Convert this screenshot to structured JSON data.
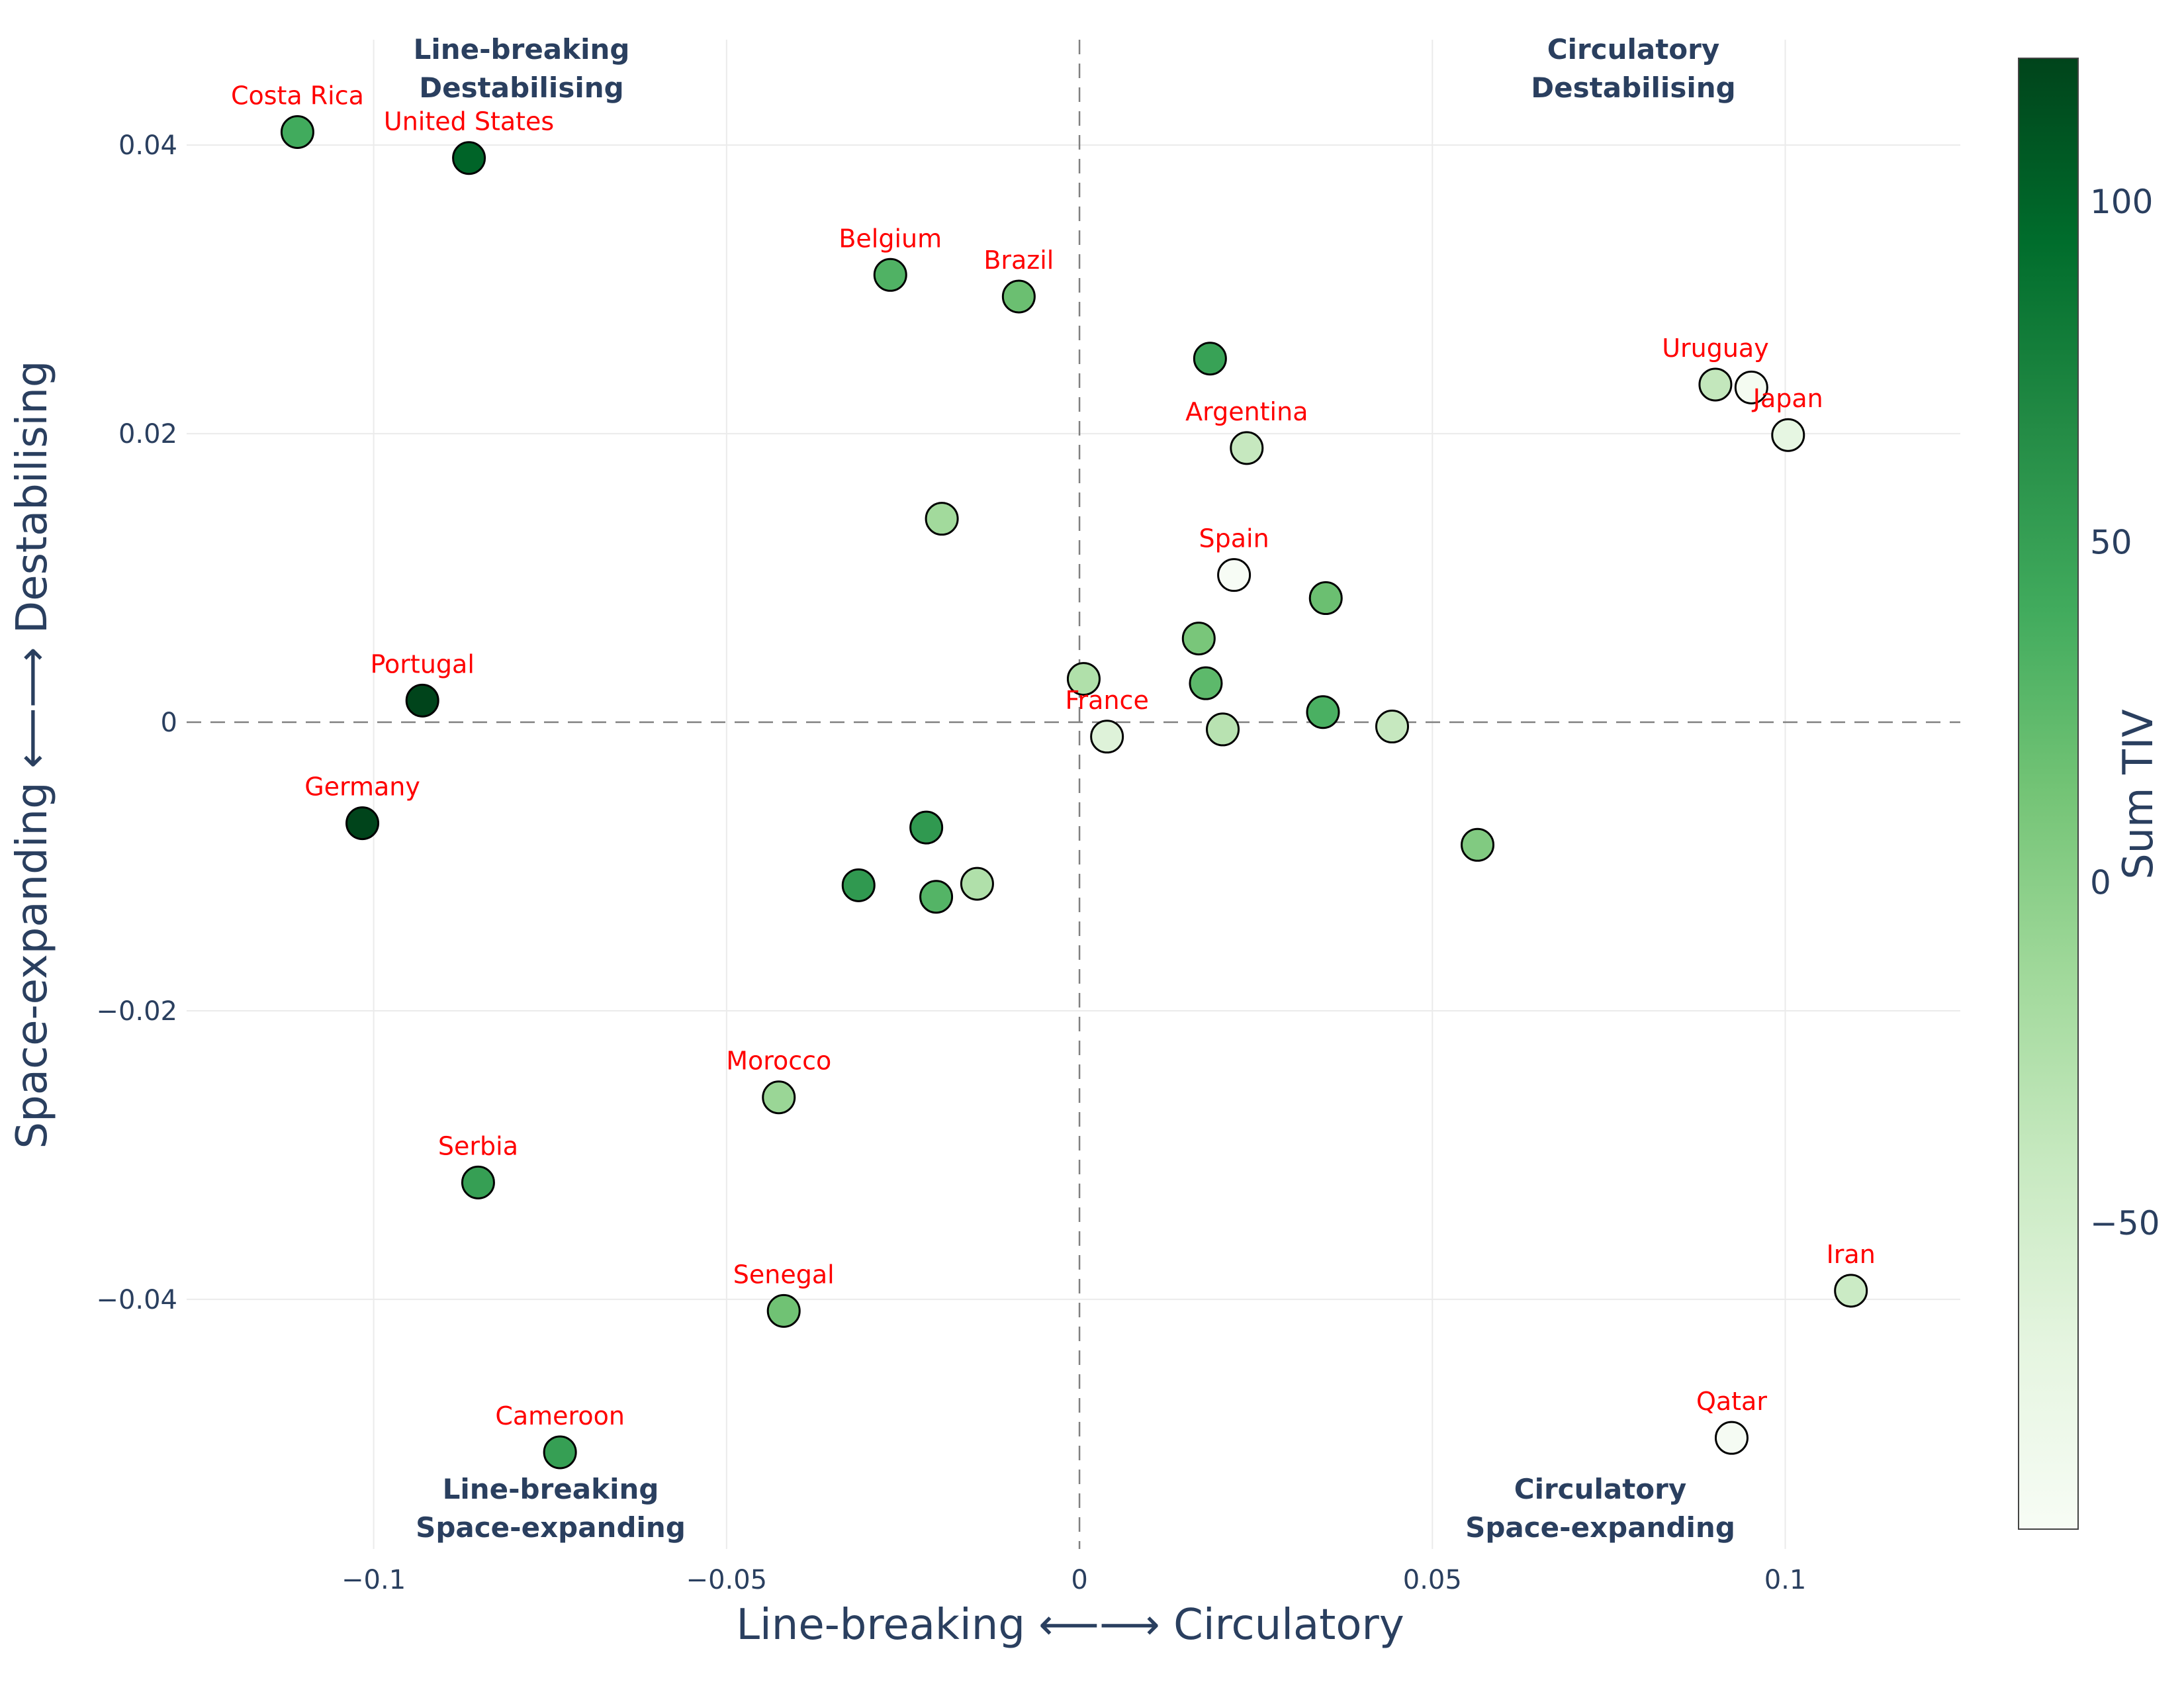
{
  "chart_data": {
    "type": "scatter",
    "title": "",
    "xlabel": "Line-breaking  ⟵⟶  Circulatory",
    "ylabel": "Space-expanding  ⟵⟶  Destabilising",
    "xlim": [
      -0.1265,
      0.1248
    ],
    "ylim": [
      -0.0573,
      0.0473
    ],
    "x_ticks": [
      -0.1,
      -0.05,
      0,
      0.05,
      0.1
    ],
    "x_tick_labels": [
      "−0.1",
      "−0.05",
      "0",
      "0.05",
      "0.1"
    ],
    "y_ticks": [
      -0.04,
      -0.02,
      0,
      0.02,
      0.04
    ],
    "y_tick_labels": [
      "−0.04",
      "−0.02",
      "0",
      "0.02",
      "0.04"
    ],
    "grid": true,
    "quadrant_labels": [
      {
        "line1": "Line-breaking",
        "line2": "Destabilising",
        "position": "top-left"
      },
      {
        "line1": "Circulatory",
        "line2": "Destabilising",
        "position": "top-right"
      },
      {
        "line1": "Line-breaking",
        "line2": "Space-expanding",
        "position": "bottom-left"
      },
      {
        "line1": "Circulatory",
        "line2": "Space-expanding",
        "position": "bottom-right"
      }
    ],
    "colorbar": {
      "title": "Sum TIV",
      "min": -95,
      "max": 121,
      "ticks": [
        -50,
        0,
        50,
        100
      ],
      "tick_labels": [
        "−50",
        "0",
        "50",
        "100"
      ],
      "colors": [
        "#f7fcf5",
        "#e5f5e0",
        "#c7e9c0",
        "#a1d99b",
        "#74c476",
        "#41ab5d",
        "#238b45",
        "#006d2c",
        "#00441b"
      ]
    },
    "label_color": "#ff0000",
    "points": [
      {
        "label": "Costa Rica",
        "x": -0.1108,
        "y": 0.0409,
        "tiv": 40
      },
      {
        "label": "United States",
        "x": -0.0865,
        "y": 0.0391,
        "tiv": 100
      },
      {
        "label": "Belgium",
        "x": -0.0268,
        "y": 0.031,
        "tiv": 32
      },
      {
        "label": "Brazil",
        "x": -0.0086,
        "y": 0.0295,
        "tiv": 18
      },
      {
        "label": "",
        "x": 0.0185,
        "y": 0.0252,
        "tiv": 48
      },
      {
        "label": "Uruguay",
        "x": 0.0901,
        "y": 0.0234,
        "tiv": -38
      },
      {
        "label": "",
        "x": 0.0952,
        "y": 0.0232,
        "tiv": -90
      },
      {
        "label": "Japan",
        "x": 0.1004,
        "y": 0.0199,
        "tiv": -70
      },
      {
        "label": "Argentina",
        "x": 0.0237,
        "y": 0.019,
        "tiv": -40
      },
      {
        "label": "",
        "x": -0.0195,
        "y": 0.0141,
        "tiv": -15
      },
      {
        "label": "Spain",
        "x": 0.0219,
        "y": 0.0102,
        "tiv": -95
      },
      {
        "label": "",
        "x": 0.0349,
        "y": 0.0086,
        "tiv": 18
      },
      {
        "label": "",
        "x": 0.0169,
        "y": 0.0058,
        "tiv": 10
      },
      {
        "label": "",
        "x": 0.0006,
        "y": 0.003,
        "tiv": -25
      },
      {
        "label": "",
        "x": 0.0179,
        "y": 0.0027,
        "tiv": 25
      },
      {
        "label": "Portugal",
        "x": -0.0931,
        "y": 0.0015,
        "tiv": 121
      },
      {
        "label": "",
        "x": 0.0345,
        "y": 0.0007,
        "tiv": 35
      },
      {
        "label": "France",
        "x": 0.0039,
        "y": -0.001,
        "tiv": -62
      },
      {
        "label": "",
        "x": 0.0203,
        "y": -0.0005,
        "tiv": -30
      },
      {
        "label": "",
        "x": 0.0443,
        "y": -0.0003,
        "tiv": -40
      },
      {
        "label": "Germany",
        "x": -0.1016,
        "y": -0.007,
        "tiv": 121
      },
      {
        "label": "",
        "x": -0.0217,
        "y": -0.0073,
        "tiv": 55
      },
      {
        "label": "",
        "x": 0.0564,
        "y": -0.0085,
        "tiv": 5
      },
      {
        "label": "",
        "x": -0.0313,
        "y": -0.0113,
        "tiv": 55
      },
      {
        "label": "",
        "x": -0.0145,
        "y": -0.0112,
        "tiv": -25
      },
      {
        "label": "",
        "x": -0.0203,
        "y": -0.0121,
        "tiv": 30
      },
      {
        "label": "Morocco",
        "x": -0.0426,
        "y": -0.026,
        "tiv": -10
      },
      {
        "label": "Serbia",
        "x": -0.0852,
        "y": -0.0319,
        "tiv": 50
      },
      {
        "label": "Senegal",
        "x": -0.0419,
        "y": -0.0408,
        "tiv": 15
      },
      {
        "label": "Iran",
        "x": 0.1093,
        "y": -0.0394,
        "tiv": -45
      },
      {
        "label": "Qatar",
        "x": 0.0924,
        "y": -0.0496,
        "tiv": -92
      },
      {
        "label": "Cameroon",
        "x": -0.0736,
        "y": -0.0506,
        "tiv": 50
      }
    ]
  }
}
